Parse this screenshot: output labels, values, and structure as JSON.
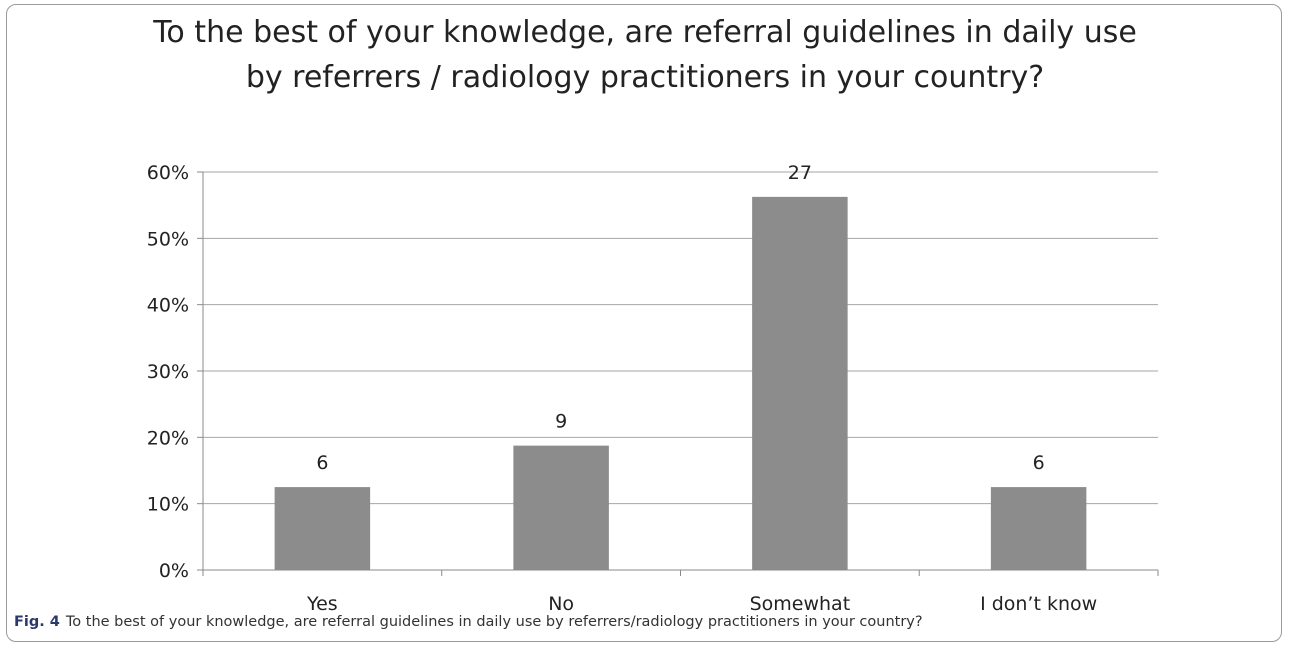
{
  "chart_data": {
    "type": "bar",
    "title": "To the best of your knowledge, are referral guidelines in daily use by referrers / radiology practitioners in your country?",
    "categories": [
      "Yes",
      "No",
      "Somewhat",
      "I don’t know"
    ],
    "values": [
      12.5,
      18.75,
      56.25,
      12.5
    ],
    "data_labels": [
      "6",
      "9",
      "27",
      "6"
    ],
    "ylim": [
      0,
      60
    ],
    "yticks": [
      "0%",
      "10%",
      "20%",
      "30%",
      "40%",
      "50%",
      "60%"
    ],
    "ytick_values": [
      0,
      10,
      20,
      30,
      40,
      50,
      60
    ],
    "xlabel": "",
    "ylabel": "",
    "grid": true,
    "legend": "none",
    "bar_color": "#8c8c8c"
  },
  "caption": {
    "label": "Fig. 4",
    "text": "To the best of your knowledge, are referral guidelines in daily use by referrers/radiology practitioners in your country?"
  }
}
